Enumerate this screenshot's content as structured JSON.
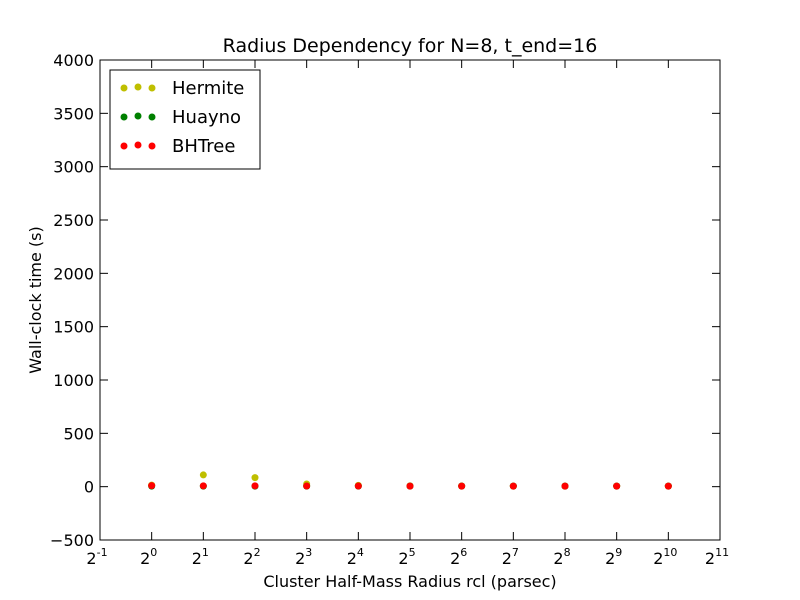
{
  "chart_data": {
    "type": "scatter",
    "title": "Radius Dependency for N=8, t_end=16",
    "xlabel": "Cluster Half-Mass Radius rcl (parsec)",
    "ylabel": "Wall-clock time (s)",
    "x_scale": "log2",
    "x_ticks": [
      -1,
      0,
      1,
      2,
      3,
      4,
      5,
      6,
      7,
      8,
      9,
      10,
      11
    ],
    "x_tick_base": "2",
    "xlim_exp": [
      -1,
      11
    ],
    "ylim": [
      -500,
      4000
    ],
    "y_ticks": [
      -500,
      0,
      500,
      1000,
      1500,
      2000,
      2500,
      3000,
      3500,
      4000
    ],
    "grid": false,
    "legend_position": "top-left",
    "x": [
      1,
      2,
      4,
      8,
      16,
      32,
      64,
      128,
      256,
      512,
      1024
    ],
    "series": [
      {
        "name": "Hermite",
        "color": "#bfbf00",
        "values": [
          15,
          110,
          85,
          25,
          12,
          8,
          6,
          5,
          5,
          5,
          5
        ]
      },
      {
        "name": "Huayno",
        "color": "#008000",
        "values": [
          5,
          5,
          5,
          5,
          5,
          5,
          5,
          5,
          5,
          5,
          5
        ]
      },
      {
        "name": "BHTree",
        "color": "#ff0000",
        "values": [
          10,
          8,
          8,
          6,
          6,
          5,
          5,
          5,
          5,
          5,
          5
        ]
      }
    ]
  }
}
